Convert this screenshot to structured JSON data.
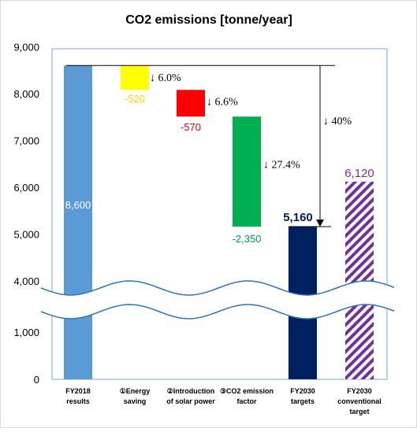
{
  "chart_data": {
    "type": "bar",
    "subtype": "waterfall",
    "title": "CO2 emissions [tonne/year]",
    "y_ticks": [
      "0",
      "1,000",
      "4,000",
      "5,000",
      "6,000",
      "7,000",
      "8,000",
      "9,000"
    ],
    "y_axis_break": "between 1,000 and 4,000",
    "grid": false,
    "categories": [
      [
        "FY2018",
        "results"
      ],
      [
        "①Energy",
        "saving"
      ],
      [
        "②Introduction",
        "of solar power"
      ],
      [
        "③CO2 emission",
        "factor"
      ],
      [
        "FY2030",
        "targets"
      ],
      [
        "FY2030",
        "conventional",
        "target"
      ]
    ],
    "bars": [
      {
        "key": "fy2018",
        "kind": "total",
        "bottom": 0,
        "top": 8600,
        "label": "8,600",
        "color": "#5b9bd5",
        "label_color": "#ffffff"
      },
      {
        "key": "energy",
        "kind": "delta",
        "bottom": 8080,
        "top": 8600,
        "label": "-520",
        "color": "#ffff00",
        "label_color": "#ffd700",
        "pct": "↓ 6.0%"
      },
      {
        "key": "solar",
        "kind": "delta",
        "bottom": 7510,
        "top": 8080,
        "label": "-570",
        "color": "#ff0000",
        "label_color": "#e00000",
        "pct": "↓ 6.6%"
      },
      {
        "key": "factor",
        "kind": "delta",
        "bottom": 5160,
        "top": 7510,
        "label": "-2,350",
        "color": "#00b050",
        "label_color": "#00a050",
        "pct": "↓ 27.4%"
      },
      {
        "key": "fy2030",
        "kind": "total",
        "bottom": 0,
        "top": 5160,
        "label": "5,160",
        "color": "#002060",
        "label_color": "#002060"
      },
      {
        "key": "conventional",
        "kind": "hatched",
        "bottom": 0,
        "top": 6120,
        "label": "6,120",
        "color": "#7030a0",
        "label_color": "#7030a0"
      }
    ],
    "total_reduction_label": "↓ 40%",
    "legend": "none"
  }
}
